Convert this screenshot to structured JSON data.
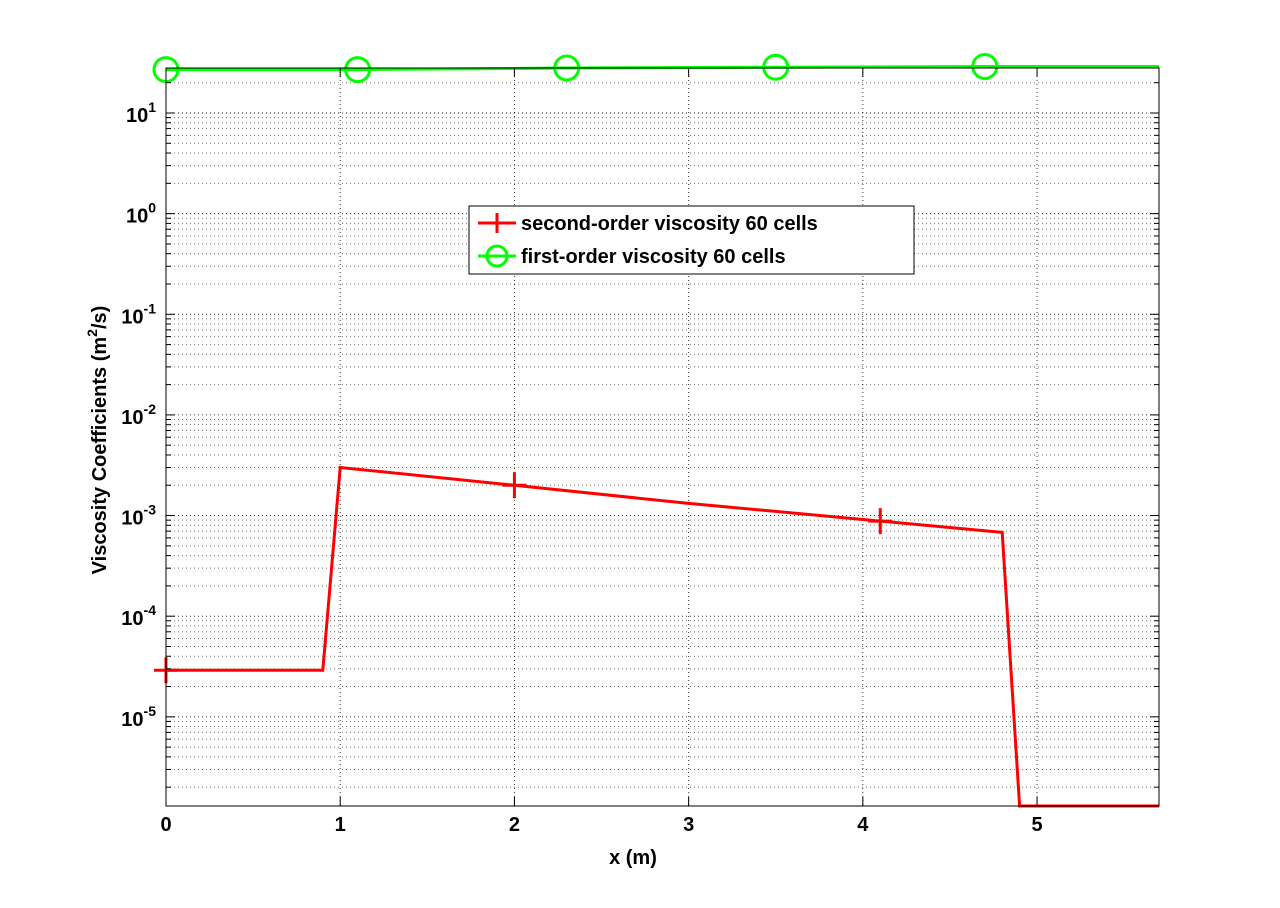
{
  "chart_data": {
    "type": "line",
    "title": "",
    "xlabel": "x (m)",
    "ylabel": "Viscosity Coefficients (m²/s)",
    "ylabel_parts": {
      "pre": "Viscosity Coefficients (m",
      "sup": "2",
      "post": "/s)"
    },
    "x_scale": "linear",
    "y_scale": "log",
    "xlim": [
      0,
      5.7
    ],
    "ylim": [
      1.3e-06,
      28
    ],
    "x_ticks": [
      0,
      1,
      2,
      3,
      4,
      5
    ],
    "x_tick_labels": [
      "0",
      "1",
      "2",
      "3",
      "4",
      "5"
    ],
    "y_ticks": [
      1e-05,
      0.0001,
      0.001,
      0.01,
      0.1,
      1,
      10
    ],
    "y_tick_labels": [
      {
        "base": "10",
        "exp": "-5"
      },
      {
        "base": "10",
        "exp": "-4"
      },
      {
        "base": "10",
        "exp": "-3"
      },
      {
        "base": "10",
        "exp": "-2"
      },
      {
        "base": "10",
        "exp": "-1"
      },
      {
        "base": "10",
        "exp": "0"
      },
      {
        "base": "10",
        "exp": "1"
      }
    ],
    "grid": true,
    "legend_position": "upper-center",
    "series": [
      {
        "name": "second-order viscosity 60 cells",
        "color": "#ff0000",
        "marker": "plus",
        "x": [
          0,
          0.9,
          1.0,
          2.0,
          3.0,
          4.1,
          4.8,
          4.9,
          5.7
        ],
        "y": [
          2.9e-05,
          2.9e-05,
          0.003,
          0.002,
          0.00132,
          0.00088,
          0.00068,
          1.3e-06,
          1.3e-06
        ],
        "marker_x": [
          0,
          2.0,
          4.1
        ],
        "marker_y": [
          2.9e-05,
          0.002,
          0.00088
        ]
      },
      {
        "name": "first-order viscosity 60 cells",
        "color": "#00ff00",
        "marker": "circle",
        "x": [
          0,
          1.1,
          2.3,
          3.5,
          4.7,
          5.7
        ],
        "y": [
          27,
          27,
          28,
          28.5,
          29,
          29
        ],
        "marker_x": [
          0,
          1.1,
          2.3,
          3.5,
          4.7
        ],
        "marker_y": [
          27,
          27,
          28,
          28.5,
          29
        ]
      }
    ]
  }
}
